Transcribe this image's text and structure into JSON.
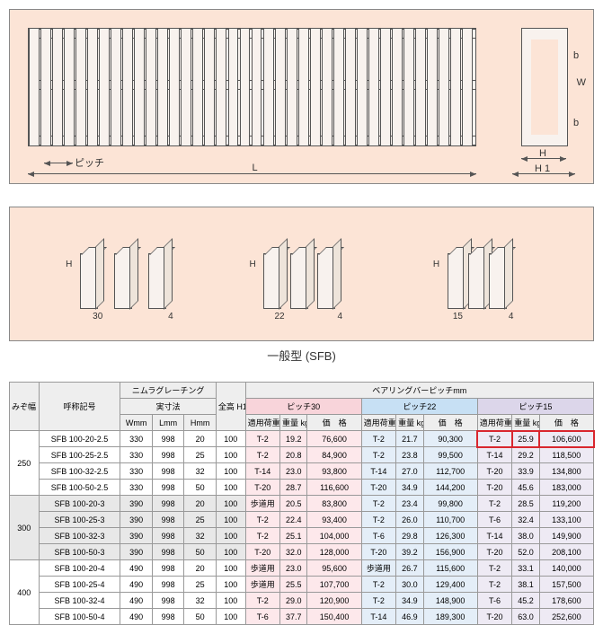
{
  "topDiagram": {
    "pitchLabel": "ピッチ",
    "lLabel": "L",
    "wLabel": "W",
    "hLabel": "H",
    "h1Label": "H 1",
    "bLabel": "b"
  },
  "midDiagram": {
    "hLabel": "H",
    "bottomWidth": "4",
    "pitches": [
      "30",
      "22",
      "15"
    ],
    "caption": "一般型 (SFB)"
  },
  "table": {
    "headers": {
      "mizo": "みぞ幅\nmm",
      "model": "呼称記号",
      "grating": "ニムラグレーチング",
      "dims": "実寸法",
      "wmm": "Wmm",
      "lmm": "Lmm",
      "hmm": "Hmm",
      "h1": "全高\nH1\nmm",
      "bearing": "ベアリングバーピッチmm",
      "pitch30": "ピッチ30",
      "pitch22": "ピッチ22",
      "pitch15": "ピッチ15",
      "load": "適用荷重\n側溝",
      "weight": "重量\nkg",
      "price": "価　格"
    },
    "groups": [
      {
        "mizo": "250",
        "shaded": false,
        "rows": [
          {
            "model": "SFB 100-20-2.5",
            "w": "330",
            "l": "998",
            "h": "20",
            "h1": "100",
            "p30": {
              "load": "T-2",
              "wt": "19.2",
              "price": "76,600"
            },
            "p22": {
              "load": "T-2",
              "wt": "21.7",
              "price": "90,300"
            },
            "p15": {
              "load": "T-2",
              "wt": "25.9",
              "price": "106,600",
              "hl": true
            }
          },
          {
            "model": "SFB 100-25-2.5",
            "w": "330",
            "l": "998",
            "h": "25",
            "h1": "100",
            "p30": {
              "load": "T-2",
              "wt": "20.8",
              "price": "84,900"
            },
            "p22": {
              "load": "T-2",
              "wt": "23.8",
              "price": "99,500"
            },
            "p15": {
              "load": "T-14",
              "wt": "29.2",
              "price": "118,500"
            }
          },
          {
            "model": "SFB 100-32-2.5",
            "w": "330",
            "l": "998",
            "h": "32",
            "h1": "100",
            "p30": {
              "load": "T-14",
              "wt": "23.0",
              "price": "93,800"
            },
            "p22": {
              "load": "T-14",
              "wt": "27.0",
              "price": "112,700"
            },
            "p15": {
              "load": "T-20",
              "wt": "33.9",
              "price": "134,800"
            }
          },
          {
            "model": "SFB 100-50-2.5",
            "w": "330",
            "l": "998",
            "h": "50",
            "h1": "100",
            "p30": {
              "load": "T-20",
              "wt": "28.7",
              "price": "116,600"
            },
            "p22": {
              "load": "T-20",
              "wt": "34.9",
              "price": "144,200"
            },
            "p15": {
              "load": "T-20",
              "wt": "45.6",
              "price": "183,000"
            }
          }
        ]
      },
      {
        "mizo": "300",
        "shaded": true,
        "rows": [
          {
            "model": "SFB 100-20-3",
            "w": "390",
            "l": "998",
            "h": "20",
            "h1": "100",
            "p30": {
              "load": "歩道用",
              "wt": "20.5",
              "price": "83,800"
            },
            "p22": {
              "load": "T-2",
              "wt": "23.4",
              "price": "99,800"
            },
            "p15": {
              "load": "T-2",
              "wt": "28.5",
              "price": "119,200"
            }
          },
          {
            "model": "SFB 100-25-3",
            "w": "390",
            "l": "998",
            "h": "25",
            "h1": "100",
            "p30": {
              "load": "T-2",
              "wt": "22.4",
              "price": "93,400"
            },
            "p22": {
              "load": "T-2",
              "wt": "26.0",
              "price": "110,700"
            },
            "p15": {
              "load": "T-6",
              "wt": "32.4",
              "price": "133,100"
            }
          },
          {
            "model": "SFB 100-32-3",
            "w": "390",
            "l": "998",
            "h": "32",
            "h1": "100",
            "p30": {
              "load": "T-2",
              "wt": "25.1",
              "price": "104,000"
            },
            "p22": {
              "load": "T-6",
              "wt": "29.8",
              "price": "126,300"
            },
            "p15": {
              "load": "T-14",
              "wt": "38.0",
              "price": "149,900"
            }
          },
          {
            "model": "SFB 100-50-3",
            "w": "390",
            "l": "998",
            "h": "50",
            "h1": "100",
            "p30": {
              "load": "T-20",
              "wt": "32.0",
              "price": "128,000"
            },
            "p22": {
              "load": "T-20",
              "wt": "39.2",
              "price": "156,900"
            },
            "p15": {
              "load": "T-20",
              "wt": "52.0",
              "price": "208,100"
            }
          }
        ]
      },
      {
        "mizo": "400",
        "shaded": false,
        "rows": [
          {
            "model": "SFB 100-20-4",
            "w": "490",
            "l": "998",
            "h": "20",
            "h1": "100",
            "p30": {
              "load": "歩道用",
              "wt": "23.0",
              "price": "95,600"
            },
            "p22": {
              "load": "歩道用",
              "wt": "26.7",
              "price": "115,600"
            },
            "p15": {
              "load": "T-2",
              "wt": "33.1",
              "price": "140,000"
            }
          },
          {
            "model": "SFB 100-25-4",
            "w": "490",
            "l": "998",
            "h": "25",
            "h1": "100",
            "p30": {
              "load": "歩道用",
              "wt": "25.5",
              "price": "107,700"
            },
            "p22": {
              "load": "T-2",
              "wt": "30.0",
              "price": "129,400"
            },
            "p15": {
              "load": "T-2",
              "wt": "38.1",
              "price": "157,500"
            }
          },
          {
            "model": "SFB 100-32-4",
            "w": "490",
            "l": "998",
            "h": "32",
            "h1": "100",
            "p30": {
              "load": "T-2",
              "wt": "29.0",
              "price": "120,900"
            },
            "p22": {
              "load": "T-2",
              "wt": "34.9",
              "price": "148,900"
            },
            "p15": {
              "load": "T-6",
              "wt": "45.2",
              "price": "178,600"
            }
          },
          {
            "model": "SFB 100-50-4",
            "w": "490",
            "l": "998",
            "h": "50",
            "h1": "100",
            "p30": {
              "load": "T-6",
              "wt": "37.7",
              "price": "150,400"
            },
            "p22": {
              "load": "T-14",
              "wt": "46.9",
              "price": "189,300"
            },
            "p15": {
              "load": "T-20",
              "wt": "63.0",
              "price": "252,600"
            }
          }
        ]
      }
    ]
  }
}
